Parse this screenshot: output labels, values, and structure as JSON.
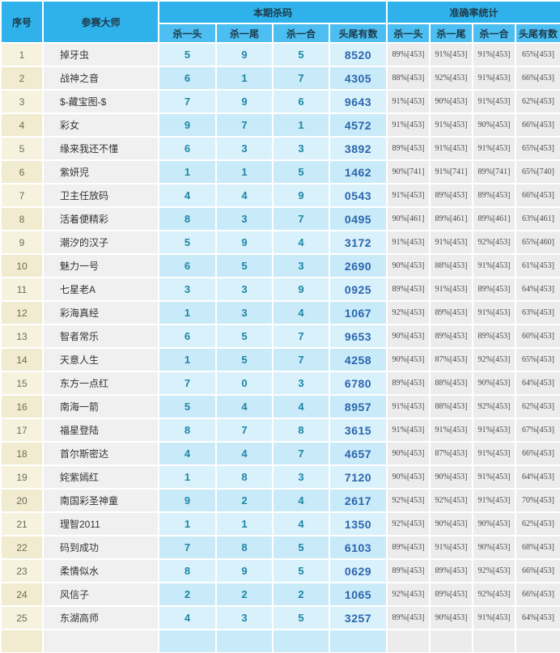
{
  "table": {
    "header": {
      "index": "序号",
      "master": "参赛大师",
      "group1": "本期杀码",
      "group2": "准确率统计",
      "sub": [
        "杀一头",
        "杀一尾",
        "杀一合",
        "头尾有数"
      ]
    },
    "rows": [
      {
        "no": "1",
        "name": "掉牙虫",
        "kill": [
          "5",
          "9",
          "5",
          "8520"
        ],
        "acc": [
          "89%[453]",
          "91%[453]",
          "91%[453]",
          "65%[453]"
        ]
      },
      {
        "no": "2",
        "name": "战神之音",
        "kill": [
          "6",
          "1",
          "7",
          "4305"
        ],
        "acc": [
          "88%[453]",
          "92%[453]",
          "91%[453]",
          "66%[453]"
        ]
      },
      {
        "no": "3",
        "name": "$-藏宝图-$",
        "kill": [
          "7",
          "9",
          "6",
          "9643"
        ],
        "acc": [
          "91%[453]",
          "90%[453]",
          "91%[453]",
          "62%[453]"
        ]
      },
      {
        "no": "4",
        "name": "彩女",
        "kill": [
          "9",
          "7",
          "1",
          "4572"
        ],
        "acc": [
          "91%[453]",
          "91%[453]",
          "90%[453]",
          "66%[453]"
        ]
      },
      {
        "no": "5",
        "name": "缘来我还不懂",
        "kill": [
          "6",
          "3",
          "3",
          "3892"
        ],
        "acc": [
          "89%[453]",
          "91%[453]",
          "91%[453]",
          "65%[453]"
        ]
      },
      {
        "no": "6",
        "name": "紫妍児",
        "kill": [
          "1",
          "1",
          "5",
          "1462"
        ],
        "acc": [
          "90%[741]",
          "91%[741]",
          "89%[741]",
          "65%[740]"
        ]
      },
      {
        "no": "7",
        "name": "卫主任放码",
        "kill": [
          "4",
          "4",
          "9",
          "0543"
        ],
        "acc": [
          "91%[453]",
          "89%[453]",
          "89%[453]",
          "66%[453]"
        ]
      },
      {
        "no": "8",
        "name": "活着便精彩",
        "kill": [
          "8",
          "3",
          "7",
          "0495"
        ],
        "acc": [
          "90%[461]",
          "89%[461]",
          "89%[461]",
          "63%[461]"
        ]
      },
      {
        "no": "9",
        "name": "潮汐的汉子",
        "kill": [
          "5",
          "9",
          "4",
          "3172"
        ],
        "acc": [
          "91%[453]",
          "91%[453]",
          "92%[453]",
          "65%[460]"
        ]
      },
      {
        "no": "10",
        "name": "魅力一号",
        "kill": [
          "6",
          "5",
          "3",
          "2690"
        ],
        "acc": [
          "90%[453]",
          "88%[453]",
          "91%[453]",
          "61%[453]"
        ]
      },
      {
        "no": "11",
        "name": "七星老A",
        "kill": [
          "3",
          "3",
          "9",
          "0925"
        ],
        "acc": [
          "89%[453]",
          "91%[453]",
          "89%[453]",
          "64%[453]"
        ]
      },
      {
        "no": "12",
        "name": "彩海真经",
        "kill": [
          "1",
          "3",
          "4",
          "1067"
        ],
        "acc": [
          "92%[453]",
          "89%[453]",
          "91%[453]",
          "63%[453]"
        ]
      },
      {
        "no": "13",
        "name": "智者常乐",
        "kill": [
          "6",
          "5",
          "7",
          "9653"
        ],
        "acc": [
          "90%[453]",
          "89%[453]",
          "89%[453]",
          "60%[453]"
        ]
      },
      {
        "no": "14",
        "name": "天意人生",
        "kill": [
          "1",
          "5",
          "7",
          "4258"
        ],
        "acc": [
          "90%[453]",
          "87%[453]",
          "92%[453]",
          "65%[453]"
        ]
      },
      {
        "no": "15",
        "name": "东方一点红",
        "kill": [
          "7",
          "0",
          "3",
          "6780"
        ],
        "acc": [
          "89%[453]",
          "88%[453]",
          "90%[453]",
          "64%[453]"
        ]
      },
      {
        "no": "16",
        "name": "南海一箭",
        "kill": [
          "5",
          "4",
          "4",
          "8957"
        ],
        "acc": [
          "91%[453]",
          "88%[453]",
          "92%[453]",
          "62%[453]"
        ]
      },
      {
        "no": "17",
        "name": "福星登陆",
        "kill": [
          "8",
          "7",
          "8",
          "3615"
        ],
        "acc": [
          "91%[453]",
          "91%[453]",
          "91%[453]",
          "67%[453]"
        ]
      },
      {
        "no": "18",
        "name": "首尔斯密达",
        "kill": [
          "4",
          "4",
          "7",
          "4657"
        ],
        "acc": [
          "90%[453]",
          "87%[453]",
          "91%[453]",
          "66%[453]"
        ]
      },
      {
        "no": "19",
        "name": "姹紫嫣红",
        "kill": [
          "1",
          "8",
          "3",
          "7120"
        ],
        "acc": [
          "90%[453]",
          "90%[453]",
          "91%[453]",
          "64%[453]"
        ]
      },
      {
        "no": "20",
        "name": "南国彩圣神童",
        "kill": [
          "9",
          "2",
          "4",
          "2617"
        ],
        "acc": [
          "92%[453]",
          "92%[453]",
          "91%[453]",
          "70%[453]"
        ]
      },
      {
        "no": "21",
        "name": "理智2011",
        "kill": [
          "1",
          "1",
          "4",
          "1350"
        ],
        "acc": [
          "92%[453]",
          "90%[453]",
          "90%[453]",
          "62%[453]"
        ]
      },
      {
        "no": "22",
        "name": "码到成功",
        "kill": [
          "7",
          "8",
          "5",
          "6103"
        ],
        "acc": [
          "89%[453]",
          "91%[453]",
          "90%[453]",
          "68%[453]"
        ]
      },
      {
        "no": "23",
        "name": "柔情似水",
        "kill": [
          "8",
          "9",
          "5",
          "0629"
        ],
        "acc": [
          "89%[453]",
          "89%[453]",
          "92%[453]",
          "66%[453]"
        ]
      },
      {
        "no": "24",
        "name": "风信子",
        "kill": [
          "2",
          "2",
          "2",
          "1065"
        ],
        "acc": [
          "92%[453]",
          "89%[453]",
          "92%[453]",
          "66%[453]"
        ]
      },
      {
        "no": "25",
        "name": "东湖高师",
        "kill": [
          "4",
          "3",
          "5",
          "3257"
        ],
        "acc": [
          "89%[453]",
          "90%[453]",
          "91%[453]",
          "64%[453]"
        ]
      }
    ],
    "colors": {
      "header_blue": "#2FB2EC",
      "subheader_blue": "#4CBEF1",
      "index_cream_odd": "#F7F2DE",
      "index_cream_even": "#F1EBD0",
      "name_bg": "#F0F0F0",
      "kill_cell_odd": "#D9F1FB",
      "kill_cell_even": "#C9EAF8",
      "stat_bg": "#ECECEC",
      "kill_digit_color": "#1E86A6",
      "kill_number_color": "#2B66AE"
    }
  }
}
